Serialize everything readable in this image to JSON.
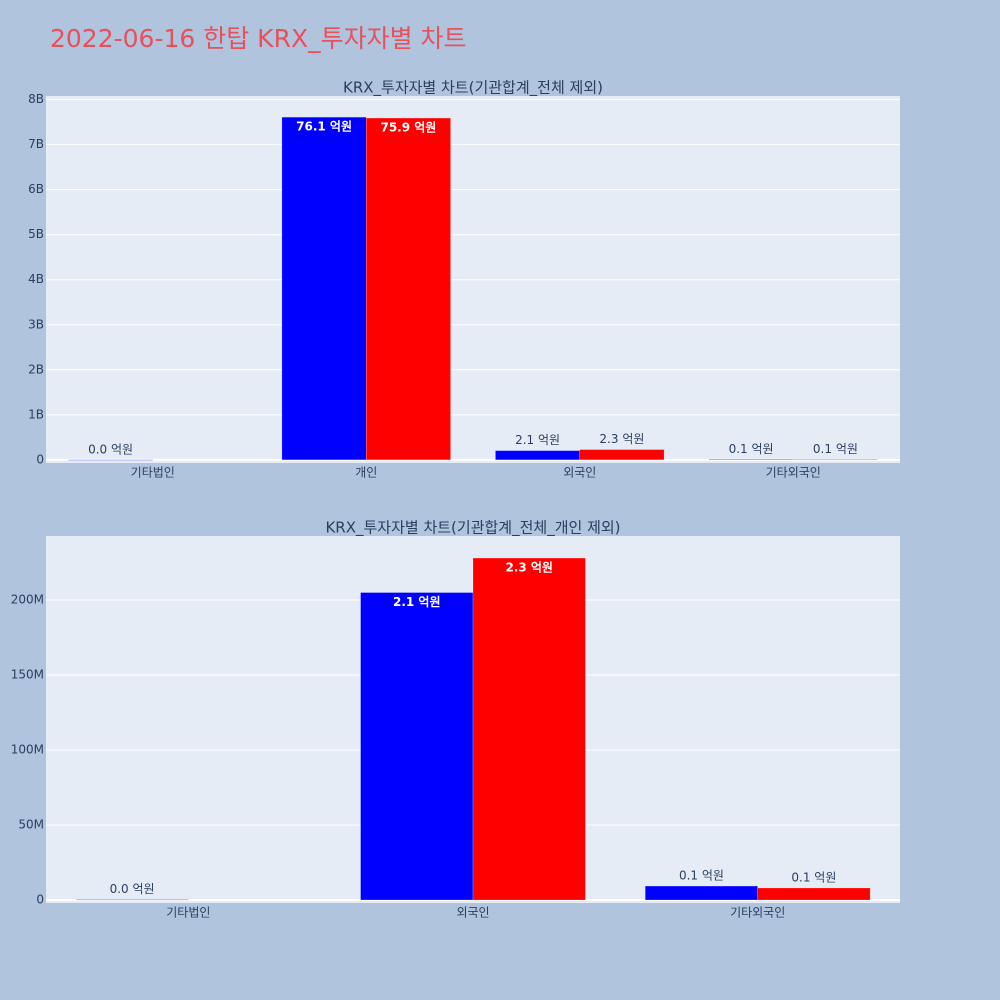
{
  "title": "2022-06-16 한탑 KRX_투자자별 차트",
  "chart_data": [
    {
      "type": "bar",
      "title": "KRX_투자자별 차트(기관합계_전체 제외)",
      "categories": [
        "기타법인",
        "개인",
        "외국인",
        "기타외국인"
      ],
      "series": [
        {
          "color": "#0000ff",
          "values": [
            300000,
            7610000000,
            205000000,
            9300000
          ],
          "value_labels": [
            "0.0 억원",
            "76.1 억원",
            "2.1 억원",
            "0.1 억원"
          ]
        },
        {
          "color": "#ff0000",
          "values": [
            null,
            7590000000,
            228000000,
            8000000
          ],
          "value_labels": [
            null,
            "75.9 억원",
            "2.3 억원",
            "0.1 억원"
          ]
        }
      ],
      "ylim": [
        -70000000,
        8080000000
      ],
      "yticks": [
        0,
        {
          "value": 1000000000,
          "label": "1B"
        },
        {
          "value": 2000000000,
          "label": "2B"
        },
        {
          "value": 3000000000,
          "label": "3B"
        },
        {
          "value": 4000000000,
          "label": "4B"
        },
        {
          "value": 5000000000,
          "label": "5B"
        },
        {
          "value": 6000000000,
          "label": "6B"
        },
        {
          "value": 7000000000,
          "label": "7B"
        },
        {
          "value": 8000000000,
          "label": "8B"
        }
      ],
      "grid": true
    },
    {
      "type": "bar",
      "title": "KRX_투자자별 차트(기관합계_전체_개인 제외)",
      "categories": [
        "기타법인",
        "외국인",
        "기타외국인"
      ],
      "series": [
        {
          "color": "#0000ff",
          "values": [
            300000,
            205000000,
            9300000
          ],
          "value_labels": [
            "0.0 억원",
            "2.1 억원",
            "0.1 억원"
          ]
        },
        {
          "color": "#ff0000",
          "values": [
            null,
            228000000,
            8000000
          ],
          "value_labels": [
            null,
            "2.3 억원",
            "0.1 억원"
          ]
        }
      ],
      "ylim": [
        -2000000,
        242700000
      ],
      "yticks": [
        0,
        {
          "value": 50000000,
          "label": "50M"
        },
        {
          "value": 100000000,
          "label": "100M"
        },
        {
          "value": 150000000,
          "label": "150M"
        },
        {
          "value": 200000000,
          "label": "200M"
        }
      ],
      "grid": true
    }
  ]
}
